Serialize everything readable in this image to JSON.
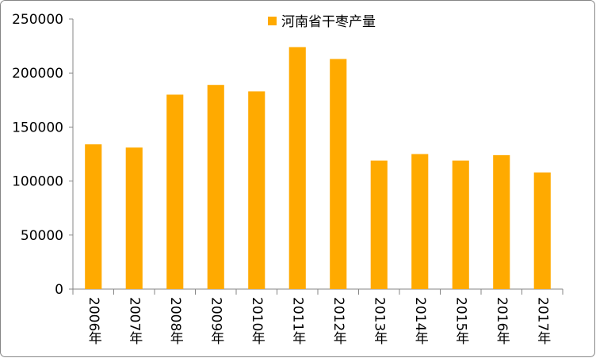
{
  "chart_data": {
    "type": "bar",
    "categories": [
      "2006年",
      "2007年",
      "2008年",
      "2009年",
      "2010年",
      "2011年",
      "2012年",
      "2013年",
      "2014年",
      "2015年",
      "2016年",
      "2017年"
    ],
    "series": [
      {
        "name": "河南省干枣产量",
        "color": "#ffaa00",
        "values": [
          134000,
          131000,
          180000,
          189000,
          183000,
          224000,
          213000,
          119000,
          125000,
          119000,
          124000,
          108000
        ]
      }
    ],
    "ylim": [
      0,
      250000
    ],
    "yticks": [
      0,
      50000,
      100000,
      150000,
      200000,
      250000
    ],
    "grid": false,
    "legend": "top"
  }
}
